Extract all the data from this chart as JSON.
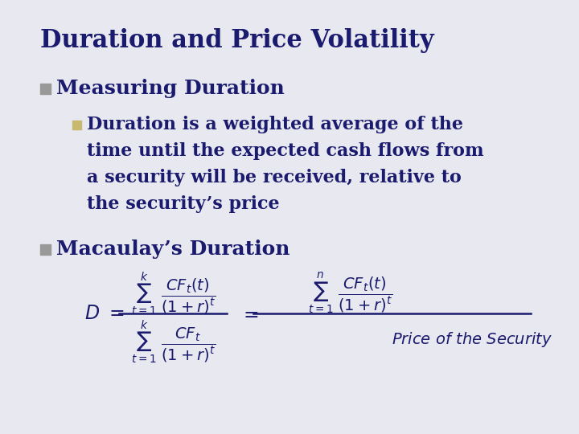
{
  "title": "Duration and Price Volatility",
  "title_color": "#1a1a6e",
  "title_fontsize": 22,
  "bg_color": "#e8e8f0",
  "bullet1_text": "Measuring Duration",
  "bullet1_color": "#1a1a6e",
  "bullet1_fontsize": 18,
  "bullet1_marker_color": "#999999",
  "bullet2_line1": "Duration is a weighted average of the",
  "bullet2_line2": "time until the expected cash flows from",
  "bullet2_line3": "a security will be received, relative to",
  "bullet2_line4": "the security’s price",
  "bullet2_color": "#1a1a6e",
  "bullet2_fontsize": 16,
  "bullet2_marker_color": "#c8b870",
  "bullet3_text": "Macaulay’s Duration",
  "bullet3_color": "#1a1a6e",
  "bullet3_fontsize": 18,
  "bullet3_marker_color": "#999999",
  "formula_color": "#1a1a6e",
  "formula_fontsize": 14
}
